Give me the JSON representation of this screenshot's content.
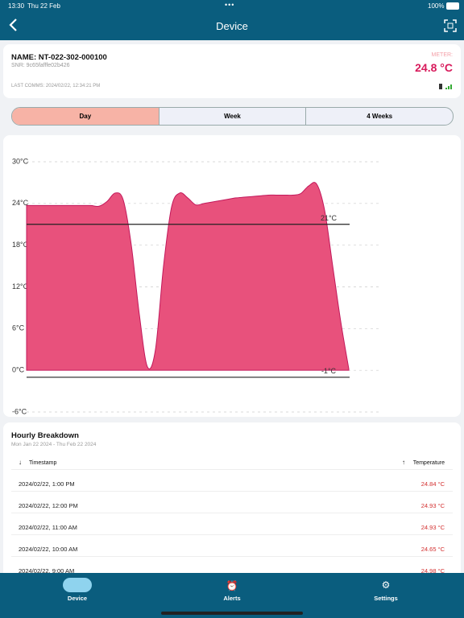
{
  "status_bar": {
    "time": "13:30",
    "date": "Thu 22 Feb",
    "battery": "100%"
  },
  "header": {
    "title": "Device"
  },
  "device": {
    "name": "NAME: NT-022-302-000100",
    "snr": "SNR: 9c65fafffe02b426",
    "last_comms": "LAST COMMS: 2024/02/22, 12:34:21 PM",
    "meter_label": "METER:",
    "meter_value": "24.8 °C"
  },
  "tabs": [
    "Day",
    "Week",
    "4 Weeks"
  ],
  "chart_data": {
    "type": "area",
    "categories": [
      null,
      null,
      null,
      null,
      null,
      null,
      null,
      null,
      null,
      null,
      null,
      null,
      null,
      null,
      null,
      null,
      null,
      null,
      null,
      null,
      null,
      null,
      null,
      null,
      null,
      null,
      null,
      null,
      null,
      null,
      null,
      null,
      null,
      null,
      null,
      null,
      null,
      null,
      null,
      null,
      null
    ],
    "series": [
      {
        "color": "#e8517c",
        "values": [
          23.7,
          23.7,
          23.7,
          23.7,
          23.7,
          23.7,
          23.7,
          23.7,
          23.7,
          23.6,
          24.3,
          25.5,
          24.5,
          18,
          8,
          0.5,
          3,
          15,
          23.5,
          25.5,
          24.8,
          23.8,
          24,
          24.2,
          24.4,
          24.6,
          24.8,
          24.9,
          25,
          25.1,
          25.2,
          25.2,
          25.2,
          25.2,
          25.4,
          26.5,
          26.8,
          23,
          15,
          7,
          0.2
        ]
      }
    ],
    "ylim": [
      -6,
      30
    ],
    "yticks": [
      {
        "value": -6,
        "label": "-6°C"
      },
      {
        "value": 0,
        "label": "0°C"
      },
      {
        "value": 6,
        "label": "6°C"
      },
      {
        "value": 12,
        "label": "12°C"
      },
      {
        "value": 18,
        "label": "18°C"
      },
      {
        "value": 24,
        "label": "24°C"
      },
      {
        "value": 30,
        "label": "30°C"
      }
    ],
    "grid": true,
    "thresholds": [
      {
        "value": 21,
        "label": "21°C"
      },
      {
        "value": -1,
        "label": "-1°C"
      }
    ]
  },
  "breakdown": {
    "title": "Hourly Breakdown",
    "subtitle": "Mon Jan 22 2024 - Thu Feb 22 2024",
    "columns": [
      "Timestamp",
      "Temperature"
    ],
    "rows": [
      [
        "2024/02/22, 1:00 PM",
        "24.84 °C"
      ],
      [
        "2024/02/22, 12:00 PM",
        "24.93 °C"
      ],
      [
        "2024/02/22, 11:00 AM",
        "24.93 °C"
      ],
      [
        "2024/02/22, 10:00 AM",
        "24.65 °C"
      ],
      [
        "2024/02/22, 9:00 AM",
        "24.98 °C"
      ]
    ]
  },
  "nav": [
    "Device",
    "Alerts",
    "Settings"
  ]
}
